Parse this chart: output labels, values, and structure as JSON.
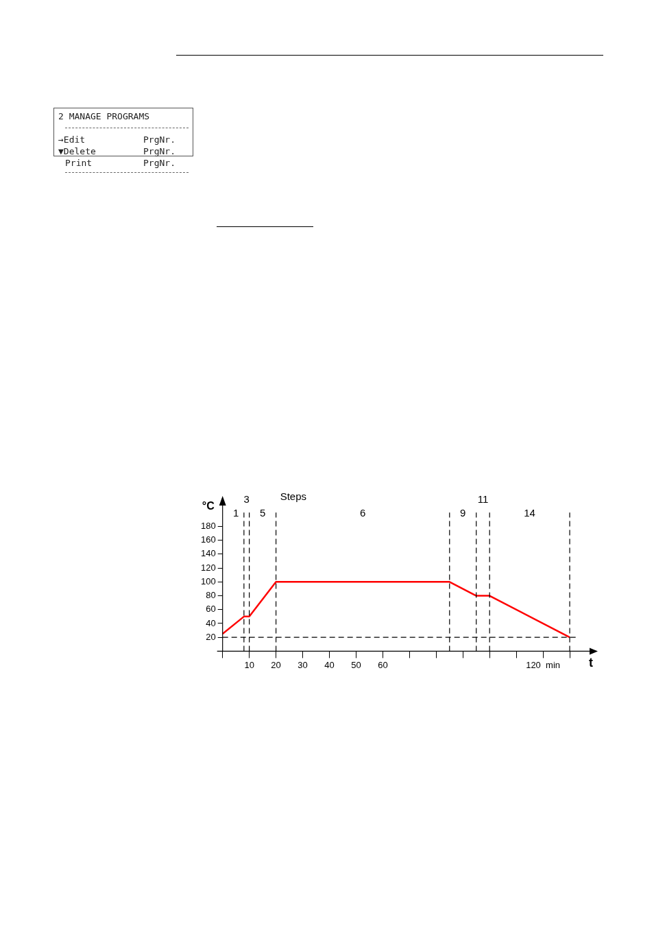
{
  "chart_data": [
    {
      "type": "other",
      "annotations": [
        "2 MANAGE PROGRAMS",
        "→Edit",
        "PrgNr.",
        "▼Delete",
        "PrgNr.",
        "Print",
        "PrgNr."
      ]
    },
    {
      "type": "line",
      "xlabel": "t",
      "ylabel": "°C",
      "x": [
        0,
        8,
        10,
        20,
        85,
        95,
        100,
        130
      ],
      "series": [
        {
          "color": "#ff0000",
          "values": [
            25,
            50,
            50,
            100,
            100,
            80,
            80,
            20
          ]
        }
      ],
      "xlim": [
        0,
        140
      ],
      "xticks": [
        {
          "value": 0,
          "label": null
        },
        10,
        20,
        30,
        40,
        50,
        60,
        {
          "value": 70,
          "label": null
        },
        {
          "value": 80,
          "label": null
        },
        {
          "value": 90,
          "label": null
        },
        {
          "value": 100,
          "label": null
        },
        {
          "value": 110,
          "label": null
        },
        {
          "value": 120,
          "label": "120  min"
        },
        {
          "value": 130,
          "label": null
        }
      ],
      "ylim": [
        0,
        220
      ],
      "yticks": [
        20,
        40,
        60,
        80,
        100,
        120,
        140,
        160,
        180
      ],
      "marker": "none",
      "line_style": "solid",
      "grid": false,
      "legend": false,
      "ref_lines": [
        {
          "axis": "y",
          "value": 20,
          "line_style": "dashed"
        },
        {
          "axis": "x",
          "value": 8,
          "line_style": "dashed"
        },
        {
          "axis": "x",
          "value": 10,
          "line_style": "dashed"
        },
        {
          "axis": "x",
          "value": 20,
          "line_style": "dashed"
        },
        {
          "axis": "x",
          "value": 85,
          "line_style": "dashed"
        },
        {
          "axis": "x",
          "value": 95,
          "line_style": "dashed"
        },
        {
          "axis": "x",
          "value": 100,
          "line_style": "dashed"
        },
        {
          "axis": "x",
          "value": 130,
          "line_style": "dashed"
        }
      ],
      "annotations": [
        "Steps",
        "1",
        "3",
        "5",
        "6",
        "9",
        "11",
        "14"
      ]
    }
  ]
}
